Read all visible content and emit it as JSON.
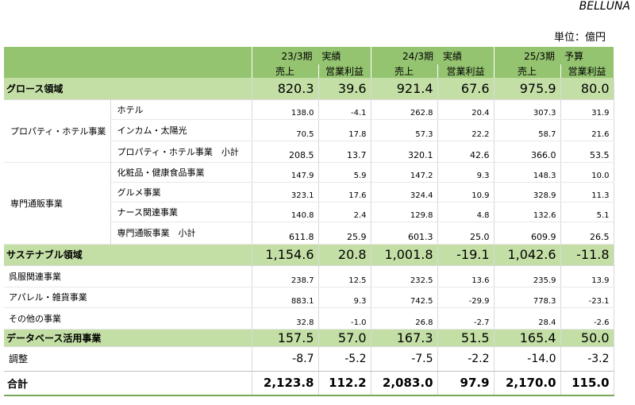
{
  "brand": "BELLUNA",
  "unit": "単位：億円",
  "periods": [
    "23/3期　実績",
    "24/3期　実績",
    "25/3期　予算"
  ],
  "cols": [
    "売上",
    "営業利益",
    "売上",
    "営業利益",
    "売上",
    "営業利益"
  ],
  "growth": {
    "label": "グロース領域",
    "values": [
      "820.3",
      "39.6",
      "921.4",
      "67.6",
      "975.9",
      "80.0"
    ],
    "property": {
      "label": "プロパティ・ホテル事業",
      "rows": [
        {
          "label": "ホテル",
          "values": [
            "138.0",
            "-4.1",
            "262.8",
            "20.4",
            "307.3",
            "31.9"
          ]
        },
        {
          "label": "インカム・太陽光",
          "values": [
            "70.5",
            "17.8",
            "57.3",
            "22.2",
            "58.7",
            "21.6"
          ]
        }
      ],
      "subtotal": {
        "label": "プロパティ・ホテル事業　小計",
        "values": [
          "208.5",
          "13.7",
          "320.1",
          "42.6",
          "366.0",
          "53.5"
        ]
      }
    },
    "mailorder": {
      "label": "専門通販事業",
      "rows": [
        {
          "label": "化粧品・健康食品事業",
          "values": [
            "147.9",
            "5.9",
            "147.2",
            "9.3",
            "148.3",
            "10.0"
          ]
        },
        {
          "label": "グルメ事業",
          "values": [
            "323.1",
            "17.6",
            "324.4",
            "10.9",
            "328.9",
            "11.3"
          ]
        },
        {
          "label": "ナース関連事業",
          "values": [
            "140.8",
            "2.4",
            "129.8",
            "4.8",
            "132.6",
            "5.1"
          ]
        }
      ],
      "subtotal": {
        "label": "専門通販事業　小計",
        "values": [
          "611.8",
          "25.9",
          "601.3",
          "25.0",
          "609.9",
          "26.5"
        ]
      }
    }
  },
  "sustainable": {
    "label": "サステナブル領域",
    "values": [
      "1,154.6",
      "20.8",
      "1,001.8",
      "-19.1",
      "1,042.6",
      "-11.8"
    ],
    "rows": [
      {
        "label": "呉服関連事業",
        "values": [
          "238.7",
          "12.5",
          "232.5",
          "13.6",
          "235.9",
          "13.9"
        ]
      },
      {
        "label": "アパレル・雑貨事業",
        "values": [
          "883.1",
          "9.3",
          "742.5",
          "-29.9",
          "778.3",
          "-23.1"
        ]
      },
      {
        "label": "その他の事業",
        "values": [
          "32.8",
          "-1.0",
          "26.8",
          "-2.7",
          "28.4",
          "-2.6"
        ]
      }
    ]
  },
  "database": {
    "label": "データベース活用事業",
    "values": [
      "157.5",
      "57.0",
      "167.3",
      "51.5",
      "165.4",
      "50.0"
    ]
  },
  "adjustment": {
    "label": "調整",
    "values": [
      "-8.7",
      "-5.2",
      "-7.5",
      "-2.2",
      "-14.0",
      "-3.2"
    ]
  },
  "total": {
    "label": "合計",
    "values": [
      "2,123.8",
      "112.2",
      "2,083.0",
      "97.9",
      "2,170.0",
      "115.0"
    ]
  }
}
